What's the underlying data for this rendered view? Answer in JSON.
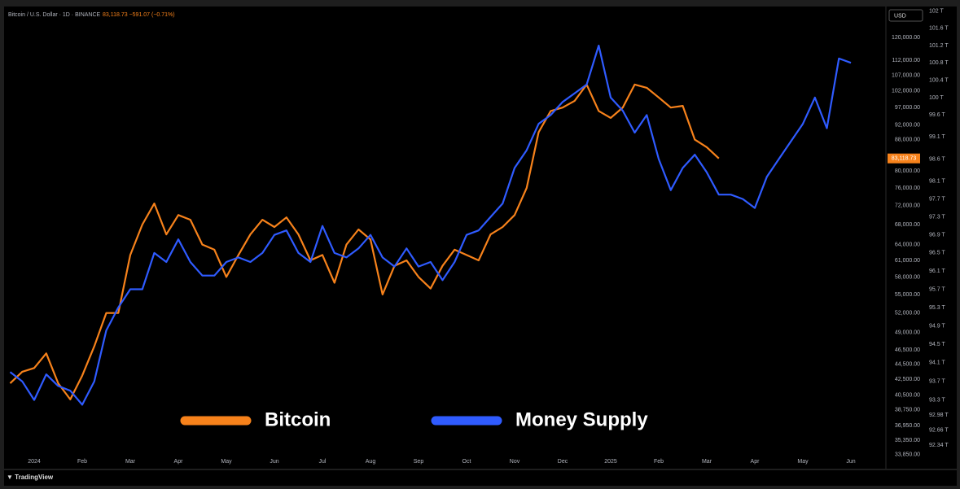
{
  "chart_data": {
    "type": "line",
    "title": "Bitcoin / U.S. Dollar · 1D · BINANCE",
    "subtitle": "83,118.73 −591.07 (−0.71%)",
    "currency": "USD",
    "price_tag": "83,118.73",
    "branding": "TradingView",
    "categories": [
      null,
      null,
      "2024",
      null,
      null,
      null,
      "Feb",
      null,
      null,
      null,
      "Mar",
      null,
      null,
      null,
      "Apr",
      null,
      null,
      null,
      "May",
      null,
      null,
      null,
      "Jun",
      null,
      null,
      null,
      "Jul",
      null,
      null,
      null,
      "Aug",
      null,
      null,
      null,
      "Sep",
      null,
      null,
      null,
      "Oct",
      null,
      null,
      null,
      "Nov",
      null,
      null,
      null,
      "Dec",
      null,
      null,
      null,
      "2025",
      null,
      null,
      null,
      "Feb",
      null,
      null,
      null,
      "Mar",
      null,
      null,
      null,
      "Apr",
      null,
      null,
      null,
      "May",
      null,
      null,
      null,
      "Jun"
    ],
    "series": [
      {
        "name": "Bitcoin",
        "color": "#f7821b",
        "axis": "y",
        "values": [
          42000,
          43500,
          44000,
          46000,
          42000,
          40000,
          43000,
          47000,
          52000,
          52000,
          62000,
          68000,
          72500,
          66000,
          70000,
          69000,
          64000,
          63000,
          58000,
          62000,
          66000,
          69000,
          67500,
          69500,
          66000,
          61000,
          62000,
          57000,
          64000,
          67000,
          65000,
          55000,
          60000,
          61000,
          58000,
          56000,
          60000,
          63000,
          62000,
          61000,
          66000,
          67500,
          70000,
          76000,
          90000,
          96000,
          97000,
          99000,
          104000,
          96000,
          94000,
          97000,
          104000,
          103000,
          100000,
          97000,
          97500,
          88000,
          86000,
          83118.73,
          null,
          null,
          null,
          null,
          null,
          null,
          null,
          null,
          null,
          null,
          null
        ]
      },
      {
        "name": "Money Supply",
        "color": "#2f5bff",
        "axis": "y2",
        "values": [
          93.9,
          93.7,
          93.3,
          93.85,
          93.6,
          93.5,
          93.2,
          93.7,
          94.8,
          95.3,
          95.7,
          95.7,
          96.5,
          96.3,
          96.8,
          96.3,
          96.0,
          96.0,
          96.3,
          96.4,
          96.3,
          96.5,
          96.9,
          97.0,
          96.5,
          96.3,
          97.1,
          96.5,
          96.4,
          96.6,
          96.9,
          96.4,
          96.2,
          96.6,
          96.2,
          96.3,
          95.9,
          96.3,
          96.9,
          97.0,
          97.3,
          97.6,
          98.4,
          98.8,
          99.4,
          99.6,
          99.9,
          100.1,
          100.3,
          101.2,
          100.0,
          99.7,
          99.2,
          99.6,
          98.6,
          97.9,
          98.4,
          98.7,
          98.3,
          97.8,
          97.8,
          97.7,
          97.5,
          98.2,
          98.6,
          99.0,
          99.4,
          100.0,
          99.3,
          100.9,
          100.8
        ]
      }
    ],
    "ylog": true,
    "ylim": [
      32500,
      131800
    ],
    "yticks": [
      {
        "value": 120000,
        "label": "120,000.00"
      },
      {
        "value": 112000,
        "label": "112,000.00"
      },
      {
        "value": 107000,
        "label": "107,000.00"
      },
      {
        "value": 102000,
        "label": "102,000.00"
      },
      {
        "value": 97000,
        "label": "97,000.00"
      },
      {
        "value": 92000,
        "label": "92,000.00"
      },
      {
        "value": 88000,
        "label": "88,000.00"
      },
      {
        "value": 80000,
        "label": "80,000.00"
      },
      {
        "value": 76000,
        "label": "76,000.00"
      },
      {
        "value": 72000,
        "label": "72,000.00"
      },
      {
        "value": 68000,
        "label": "68,000.00"
      },
      {
        "value": 64000,
        "label": "64,000.00"
      },
      {
        "value": 61000,
        "label": "61,000.00"
      },
      {
        "value": 58000,
        "label": "58,000.00"
      },
      {
        "value": 55000,
        "label": "55,000.00"
      },
      {
        "value": 52000,
        "label": "52,000.00"
      },
      {
        "value": 49000,
        "label": "49,000.00"
      },
      {
        "value": 46500,
        "label": "46,500.00"
      },
      {
        "value": 44500,
        "label": "44,500.00"
      },
      {
        "value": 42500,
        "label": "42,500.00"
      },
      {
        "value": 40500,
        "label": "40,500.00"
      },
      {
        "value": 38750,
        "label": "38,750.00"
      },
      {
        "value": 36950,
        "label": "36,950.00"
      },
      {
        "value": 35350,
        "label": "35,350.00"
      },
      {
        "value": 33850,
        "label": "33,850.00"
      }
    ],
    "y2log": true,
    "y2lim": [
      91.86,
      102.11
    ],
    "y2ticks": [
      {
        "value": 102,
        "label": "102 T"
      },
      {
        "value": 101.6,
        "label": "101.6 T"
      },
      {
        "value": 101.2,
        "label": "101.2 T"
      },
      {
        "value": 100.8,
        "label": "100.8 T"
      },
      {
        "value": 100.4,
        "label": "100.4 T"
      },
      {
        "value": 100,
        "label": "100 T"
      },
      {
        "value": 99.6,
        "label": "99.6 T"
      },
      {
        "value": 99.1,
        "label": "99.1 T"
      },
      {
        "value": 98.6,
        "label": "98.6 T"
      },
      {
        "value": 98.1,
        "label": "98.1 T"
      },
      {
        "value": 97.7,
        "label": "97.7 T"
      },
      {
        "value": 97.3,
        "label": "97.3 T"
      },
      {
        "value": 96.9,
        "label": "96.9 T"
      },
      {
        "value": 96.5,
        "label": "96.5 T"
      },
      {
        "value": 96.1,
        "label": "96.1 T"
      },
      {
        "value": 95.7,
        "label": "95.7 T"
      },
      {
        "value": 95.3,
        "label": "95.3 T"
      },
      {
        "value": 94.9,
        "label": "94.9 T"
      },
      {
        "value": 94.5,
        "label": "94.5 T"
      },
      {
        "value": 94.1,
        "label": "94.1 T"
      },
      {
        "value": 93.7,
        "label": "93.7 T"
      },
      {
        "value": 93.3,
        "label": "93.3 T"
      },
      {
        "value": 92.98,
        "label": "92.98 T"
      },
      {
        "value": 92.66,
        "label": "92.66 T"
      },
      {
        "value": 92.34,
        "label": "92.34 T"
      }
    ],
    "grid": false
  }
}
